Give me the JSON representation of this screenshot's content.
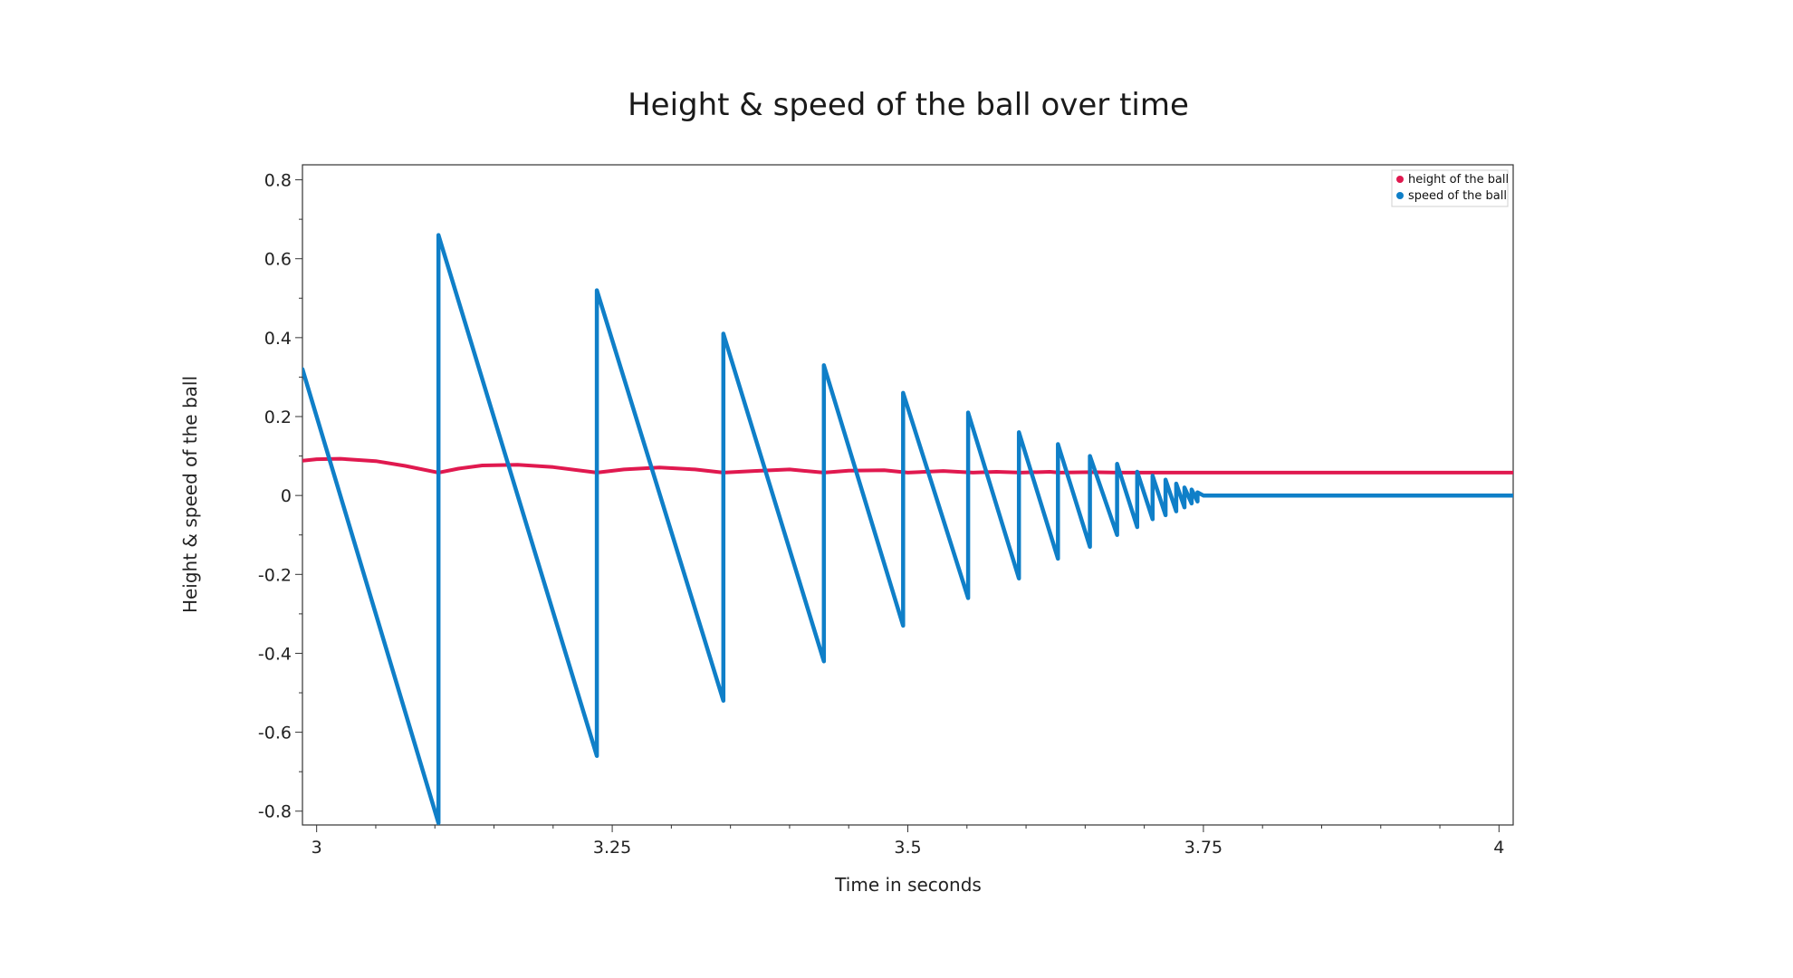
{
  "chart_data": {
    "type": "line",
    "title": "Height & speed of the ball over time",
    "xlabel": "Time in seconds",
    "ylabel": "Height & speed of the ball",
    "xlim": [
      2.988,
      4.012
    ],
    "ylim": [
      -0.835,
      0.838
    ],
    "xticks": [
      3,
      3.25,
      3.5,
      3.75,
      4
    ],
    "xtick_labels": [
      "3",
      "3.25",
      "3.5",
      "3.75",
      "4"
    ],
    "yticks": [
      0.8,
      0.6,
      0.4,
      0.2,
      0,
      -0.2,
      -0.4,
      -0.6,
      -0.8
    ],
    "ytick_labels": [
      "0.8",
      "0.6",
      "0.4",
      "0.2",
      "0",
      "-0.2",
      "-0.4",
      "-0.6",
      "-0.8"
    ],
    "grid": false,
    "legend_position": "top-right",
    "series": [
      {
        "name": "height of the ball",
        "color": "#e0194f",
        "x": [
          2.988,
          3.0,
          3.02,
          3.05,
          3.075,
          3.103,
          3.12,
          3.14,
          3.17,
          3.2,
          3.237,
          3.26,
          3.29,
          3.32,
          3.344,
          3.37,
          3.4,
          3.429,
          3.45,
          3.48,
          3.5,
          3.53,
          3.555,
          3.575,
          3.596,
          3.62,
          3.628,
          3.655,
          3.678,
          3.7,
          3.75,
          3.8,
          3.9,
          4.0,
          4.012
        ],
        "values": [
          0.088,
          0.092,
          0.093,
          0.087,
          0.075,
          0.058,
          0.068,
          0.076,
          0.078,
          0.072,
          0.058,
          0.066,
          0.071,
          0.066,
          0.058,
          0.062,
          0.066,
          0.058,
          0.063,
          0.064,
          0.058,
          0.062,
          0.058,
          0.06,
          0.058,
          0.06,
          0.058,
          0.059,
          0.058,
          0.058,
          0.058,
          0.058,
          0.058,
          0.058,
          0.058
        ]
      },
      {
        "name": "speed of the ball",
        "color": "#0f7fc8",
        "x": [
          2.988,
          3.103,
          3.103,
          3.237,
          3.237,
          3.344,
          3.344,
          3.429,
          3.429,
          3.496,
          3.496,
          3.551,
          3.551,
          3.594,
          3.594,
          3.627,
          3.627,
          3.654,
          3.654,
          3.677,
          3.677,
          3.694,
          3.694,
          3.707,
          3.707,
          3.718,
          3.718,
          3.727,
          3.727,
          3.734,
          3.734,
          3.74,
          3.74,
          3.745,
          3.745,
          3.75,
          3.76,
          3.8,
          4.0,
          4.012
        ],
        "values": [
          0.32,
          -0.83,
          0.66,
          -0.66,
          0.52,
          -0.52,
          0.41,
          -0.42,
          0.33,
          -0.33,
          0.26,
          -0.26,
          0.21,
          -0.21,
          0.16,
          -0.16,
          0.13,
          -0.13,
          0.1,
          -0.1,
          0.08,
          -0.08,
          0.06,
          -0.06,
          0.05,
          -0.05,
          0.04,
          -0.04,
          0.03,
          -0.03,
          0.02,
          -0.02,
          0.015,
          -0.015,
          0.008,
          0.0,
          0.0,
          0.0,
          0.0,
          0.0
        ]
      }
    ]
  }
}
